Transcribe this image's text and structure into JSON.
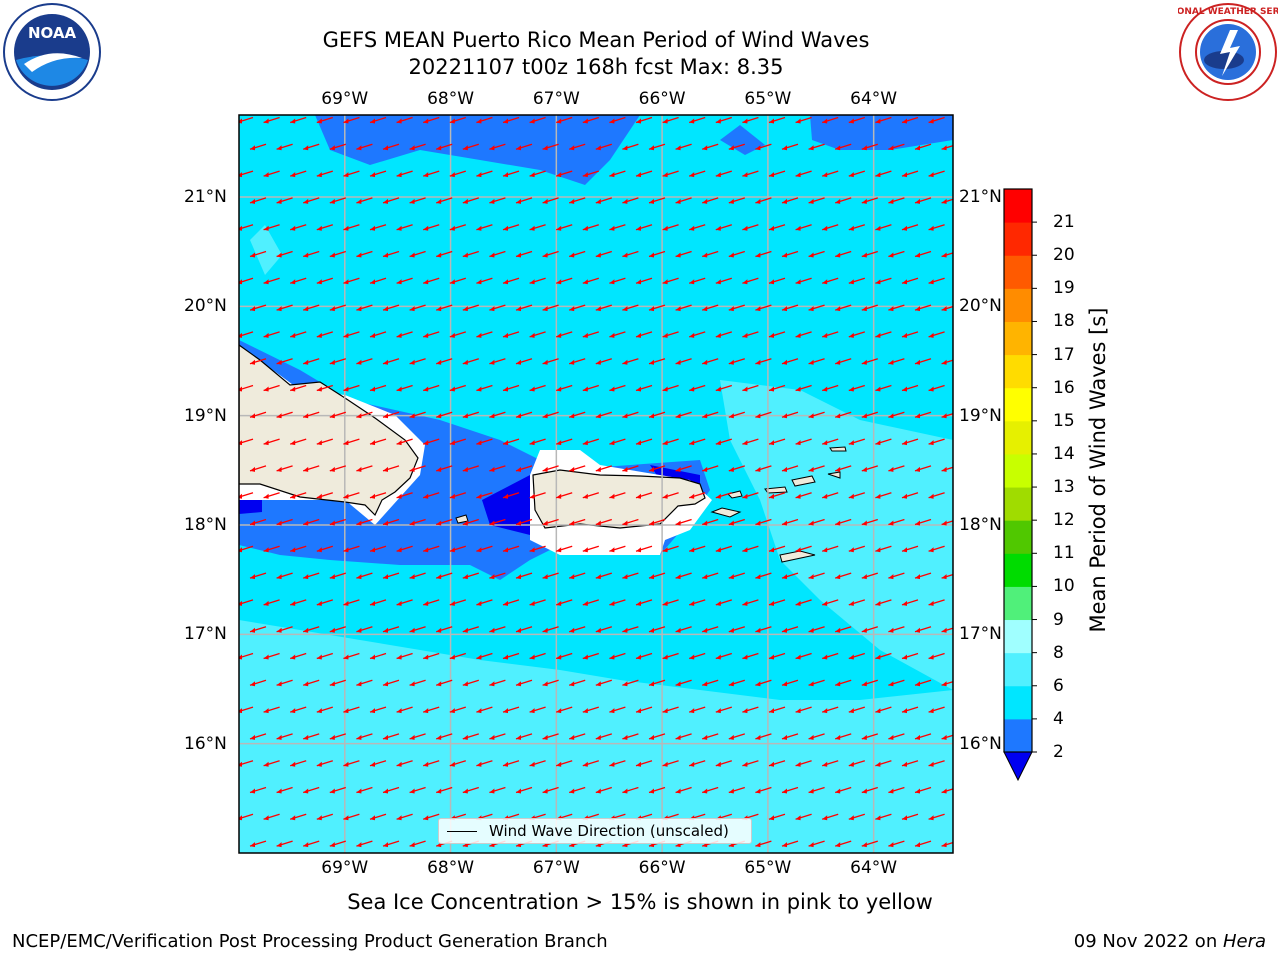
{
  "title": {
    "line1": "GEFS MEAN Puerto Rico Mean Period of Wind Waves",
    "line2": "20221107 t00z 168h fcst   Max: 8.35"
  },
  "logos": {
    "left": "NOAA",
    "right": "NATIONAL WEATHER SERVICE"
  },
  "map": {
    "lon_labels": [
      "69°W",
      "68°W",
      "67°W",
      "66°W",
      "65°W",
      "64°W"
    ],
    "lat_labels": [
      "21°N",
      "20°N",
      "19°N",
      "18°N",
      "17°N",
      "16°N"
    ],
    "lon_values": [
      -69,
      -68,
      -67,
      -66,
      -65,
      -64
    ],
    "lat_values": [
      21,
      20,
      19,
      18,
      17,
      16
    ],
    "lon_range": [
      -70.0,
      -63.25
    ],
    "lat_range": [
      15.0,
      21.75
    ],
    "grid": true,
    "arrow_color": "#ff0000",
    "land_color": "#efebdc",
    "arrow_direction": "toward west-southwest"
  },
  "colorbar": {
    "title": "Mean Period of Wind Waves [s]",
    "ticks": [
      "2",
      "4",
      "6",
      "8",
      "9",
      "10",
      "11",
      "12",
      "13",
      "14",
      "15",
      "16",
      "17",
      "18",
      "19",
      "20",
      "21"
    ],
    "colors": [
      "#0000f0",
      "#1e78ff",
      "#00e6ff",
      "#50f0ff",
      "#a0ffff",
      "#50f07a",
      "#00dc00",
      "#50c800",
      "#a0dc00",
      "#c8ff00",
      "#e6f000",
      "#ffff00",
      "#ffdc00",
      "#ffb400",
      "#ff8c00",
      "#ff5a00",
      "#ff2800",
      "#ff0000"
    ],
    "extend": "min"
  },
  "legend": {
    "label": "Wind Wave Direction (unscaled)"
  },
  "note": "Sea Ice Concentration > 15% is shown in pink to yellow",
  "footer": {
    "left": "NCEP/EMC/Verification Post Processing Product Generation Branch",
    "date": "09 Nov 2022 on ",
    "machine": "Hera"
  }
}
